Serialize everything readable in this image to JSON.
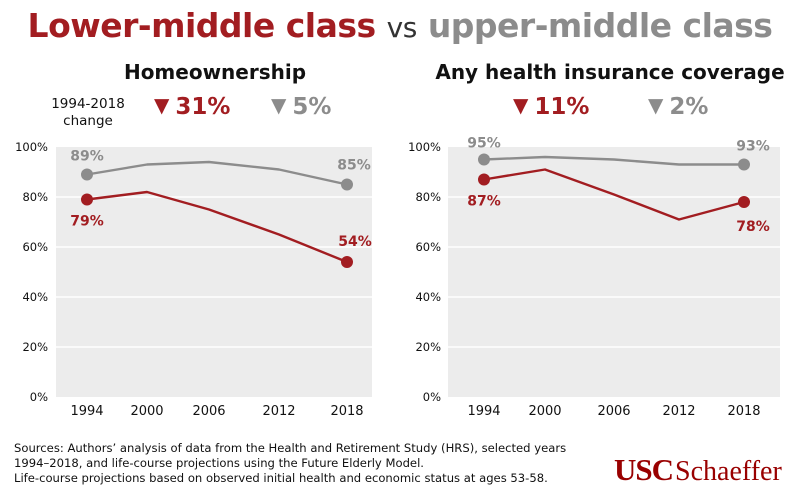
{
  "header": {
    "lower_label": "Lower-middle class",
    "vs_label": "vs",
    "upper_label": "upper-middle class"
  },
  "colors": {
    "lower": "#a21d21",
    "upper": "#8c8c8c",
    "plot_bg": "#ececec",
    "grid": "#ffffff"
  },
  "change_label": "1994-2018 change",
  "chart_data": [
    {
      "type": "line",
      "title": "Homeownership",
      "change": {
        "lower": "31%",
        "upper": "5%"
      },
      "categories": [
        "1994",
        "2000",
        "2006",
        "2012",
        "2018"
      ],
      "x": [
        1994,
        2000,
        2006,
        2012,
        2018
      ],
      "ylim": [
        0,
        100
      ],
      "yticks": [
        "0%",
        "20%",
        "40%",
        "60%",
        "80%",
        "100%"
      ],
      "series": [
        {
          "name": "Upper-middle class",
          "values": [
            89,
            93,
            94,
            91,
            85
          ],
          "start_label": "89%",
          "end_label": "85%"
        },
        {
          "name": "Lower-middle class",
          "values": [
            79,
            82,
            75,
            65,
            54
          ],
          "start_label": "79%",
          "end_label": "54%"
        }
      ]
    },
    {
      "type": "line",
      "title": "Any health insurance coverage",
      "change": {
        "lower": "11%",
        "upper": "2%"
      },
      "categories": [
        "1994",
        "2000",
        "2006",
        "2012",
        "2018"
      ],
      "x": [
        1994,
        2000,
        2006,
        2012,
        2018
      ],
      "ylim": [
        0,
        100
      ],
      "yticks": [
        "0%",
        "20%",
        "40%",
        "60%",
        "80%",
        "100%"
      ],
      "series": [
        {
          "name": "Upper-middle class",
          "values": [
            95,
            96,
            95,
            93,
            93
          ],
          "start_label": "95%",
          "end_label": "93%"
        },
        {
          "name": "Lower-middle class",
          "values": [
            87,
            91,
            81,
            71,
            78
          ],
          "start_label": "87%",
          "end_label": "78%"
        }
      ]
    }
  ],
  "sources": {
    "line1": "Sources: Authors’ analysis of data from the Health and Retirement Study (HRS), selected years",
    "line2": "1994–2018, and life-course projections using the Future Elderly Model.",
    "line3": "Life-course projections based on observed initial health and economic status at ages 53-58."
  },
  "logo": {
    "usc": "USC",
    "schaeffer": "Schaeffer"
  }
}
